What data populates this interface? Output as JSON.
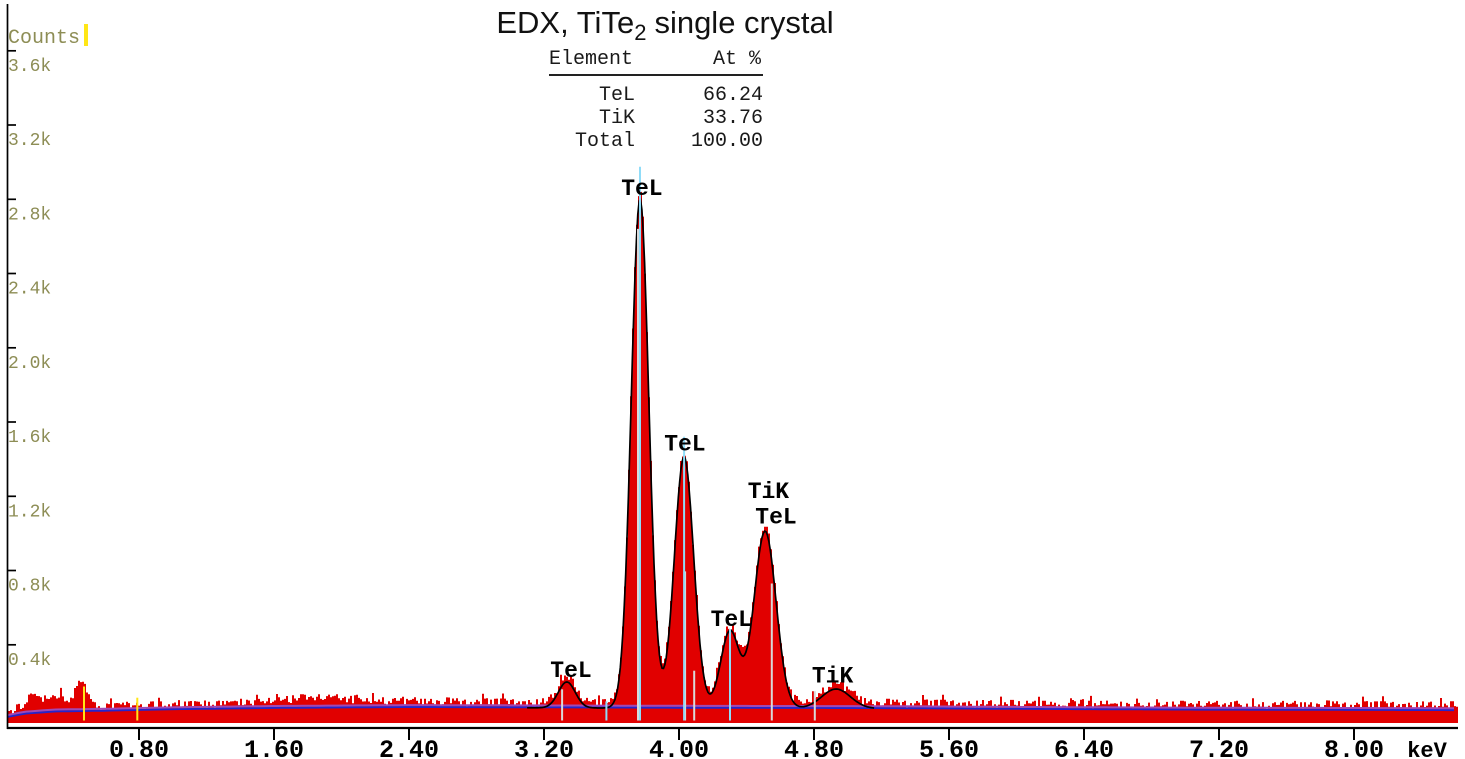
{
  "title": {
    "prefix": "EDX, TiTe",
    "sub": "2",
    "suffix": "single crystal"
  },
  "element_table": {
    "headers": [
      "Element",
      "At %"
    ],
    "rows": [
      [
        "TeL",
        "66.24"
      ],
      [
        "TiK",
        "33.76"
      ],
      [
        "Total",
        "100.00"
      ]
    ]
  },
  "chart_data": {
    "type": "area",
    "title": "EDX, TiTe2 single crystal",
    "xlabel": "keV",
    "ylabel": "Counts",
    "xlim": [
      0,
      8.66
    ],
    "ylim": [
      0,
      3870
    ],
    "grid": false,
    "legend": false,
    "x_ticks": [
      {
        "v": 0.8,
        "label": "0.80"
      },
      {
        "v": 1.6,
        "label": "1.60"
      },
      {
        "v": 2.4,
        "label": "2.40"
      },
      {
        "v": 3.2,
        "label": "3.20"
      },
      {
        "v": 4.0,
        "label": "4.00"
      },
      {
        "v": 4.8,
        "label": "4.80"
      },
      {
        "v": 5.6,
        "label": "5.60"
      },
      {
        "v": 6.4,
        "label": "6.40"
      },
      {
        "v": 7.2,
        "label": "7.20"
      },
      {
        "v": 8.0,
        "label": "8.00"
      }
    ],
    "y_ticks": [
      {
        "v": 400,
        "label": "0.4k"
      },
      {
        "v": 800,
        "label": "0.8k"
      },
      {
        "v": 1200,
        "label": "1.2k"
      },
      {
        "v": 1600,
        "label": "1.6k"
      },
      {
        "v": 2000,
        "label": "2.0k"
      },
      {
        "v": 2400,
        "label": "2.4k"
      },
      {
        "v": 2800,
        "label": "2.8k"
      },
      {
        "v": 3200,
        "label": "3.2k"
      },
      {
        "v": 3600,
        "label": "3.6k"
      }
    ],
    "background_points": [
      [
        0.02,
        8
      ],
      [
        0.12,
        26
      ],
      [
        0.3,
        38
      ],
      [
        0.6,
        42
      ],
      [
        1.0,
        50
      ],
      [
        1.6,
        57
      ],
      [
        2.4,
        62
      ],
      [
        3.2,
        60
      ],
      [
        4.0,
        58
      ],
      [
        4.6,
        57
      ],
      [
        5.2,
        56
      ],
      [
        6.0,
        52
      ],
      [
        7.0,
        48
      ],
      [
        8.66,
        45
      ]
    ],
    "peaks": [
      {
        "center_kev": 0.17,
        "amplitude": 62,
        "sigma": 0.05,
        "assignment": ""
      },
      {
        "center_kev": 0.3,
        "amplitude": 48,
        "sigma": 0.06,
        "assignment": ""
      },
      {
        "center_kev": 0.462,
        "amplitude": 128,
        "sigma": 0.042,
        "assignment": ""
      },
      {
        "center_kev": 1.85,
        "amplitude": 26,
        "sigma": 0.32,
        "assignment": "continuum bump"
      },
      {
        "center_kev": 3.335,
        "amplitude": 140,
        "sigma": 0.05,
        "assignment": "TeL"
      },
      {
        "center_kev": 3.769,
        "amplitude": 2745,
        "sigma": 0.052,
        "assignment": "TeL"
      },
      {
        "center_kev": 4.03,
        "amplitude": 1355,
        "sigma": 0.057,
        "assignment": "TeL"
      },
      {
        "center_kev": 4.302,
        "amplitude": 415,
        "sigma": 0.055,
        "assignment": "TeL"
      },
      {
        "center_kev": 4.51,
        "amplitude": 955,
        "sigma": 0.065,
        "assignment": "TiK TeL"
      },
      {
        "center_kev": 4.931,
        "amplitude": 105,
        "sigma": 0.085,
        "assignment": "TiK"
      }
    ],
    "fit_range_kev": [
      3.1,
      5.16
    ],
    "annotations": [
      {
        "text": "TeL",
        "kev": 3.36,
        "counts": 270
      },
      {
        "text": "TeL",
        "kev": 3.78,
        "counts": 2865
      },
      {
        "text": "TeL",
        "kev": 4.035,
        "counts": 1490
      },
      {
        "text": "TeL",
        "kev": 4.31,
        "counts": 545
      },
      {
        "text": "TiK",
        "kev": 4.53,
        "counts": 1235
      },
      {
        "text": "TeL",
        "kev": 4.575,
        "counts": 1095
      },
      {
        "text": "TiK",
        "kev": 4.91,
        "counts": 240
      }
    ],
    "klm_lines": {
      "cyan": [
        {
          "kev": 3.57,
          "top_counts": 95
        },
        {
          "kev": 3.769,
          "top_counts": 2975
        },
        {
          "kev": 4.03,
          "top_counts": 1520
        },
        {
          "kev": 4.302,
          "top_counts": 485
        }
      ],
      "gray": [
        {
          "kev": 3.307,
          "top_counts": 160
        },
        {
          "kev": 3.757,
          "top_counts": 2640
        },
        {
          "kev": 4.036,
          "top_counts": 795
        },
        {
          "kev": 4.09,
          "top_counts": 260
        },
        {
          "kev": 4.55,
          "top_counts": 730
        },
        {
          "kev": 4.805,
          "top_counts": 150
        }
      ],
      "yellow": [
        {
          "kev": 0.474,
          "top_counts": 175
        },
        {
          "kev": 0.79,
          "top_counts": 115
        }
      ]
    },
    "colors": {
      "spectrum": "#e10000",
      "fit_line": "#000000",
      "baseline_line": "#2424cc",
      "fit_total_line": "#a148b4",
      "marker_cyan": "#90dcf8",
      "marker_gray": "#d9d9d9",
      "marker_yellow": "#ffe616",
      "axis_text_y": "#8d8d55",
      "axis_text_x": "#000000"
    }
  }
}
